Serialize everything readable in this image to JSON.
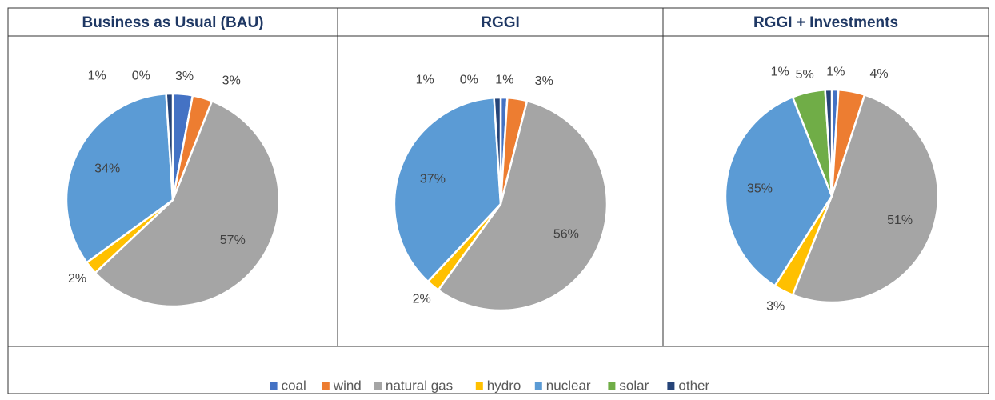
{
  "chart_data": [
    {
      "type": "pie",
      "title": "Business as Usual (BAU)",
      "categories": [
        "coal",
        "wind",
        "natural gas",
        "hydro",
        "nuclear",
        "solar",
        "other"
      ],
      "colors": [
        "#4472c4",
        "#ed7d31",
        "#a5a5a5",
        "#ffc000",
        "#5b9bd5",
        "#70ad47",
        "#264478"
      ],
      "values": [
        3,
        3,
        57,
        2,
        34,
        0,
        1
      ],
      "value_labels": [
        "3%",
        "3%",
        "57%",
        "2%",
        "34%",
        "0%",
        "1%"
      ]
    },
    {
      "type": "pie",
      "title": "RGGI",
      "categories": [
        "coal",
        "wind",
        "natural gas",
        "hydro",
        "nuclear",
        "solar",
        "other"
      ],
      "colors": [
        "#4472c4",
        "#ed7d31",
        "#a5a5a5",
        "#ffc000",
        "#5b9bd5",
        "#70ad47",
        "#264478"
      ],
      "values": [
        1,
        3,
        56,
        2,
        37,
        0,
        1
      ],
      "value_labels": [
        "1%",
        "3%",
        "56%",
        "2%",
        "37%",
        "0%",
        "1%"
      ]
    },
    {
      "type": "pie",
      "title": "RGGI + Investments",
      "categories": [
        "coal",
        "wind",
        "natural gas",
        "hydro",
        "nuclear",
        "solar",
        "other"
      ],
      "colors": [
        "#4472c4",
        "#ed7d31",
        "#a5a5a5",
        "#ffc000",
        "#5b9bd5",
        "#70ad47",
        "#264478"
      ],
      "values": [
        1,
        4,
        51,
        3,
        35,
        5,
        1
      ],
      "value_labels": [
        "1%",
        "4%",
        "51%",
        "3%",
        "35%",
        "5%",
        "1%"
      ]
    }
  ]
}
